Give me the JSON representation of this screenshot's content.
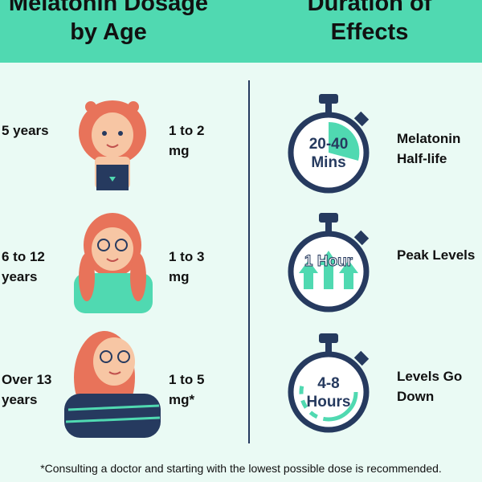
{
  "header": {
    "left_title": "Melatonin Dosage by Age",
    "right_title": "Duration of Effects"
  },
  "dosage": [
    {
      "age": "5 years",
      "dose": "1 to 2 mg"
    },
    {
      "age": "6 to 12 years",
      "dose": "1 to 3 mg"
    },
    {
      "age": "Over 13 years",
      "dose": "1 to 5 mg*"
    }
  ],
  "duration": [
    {
      "time": "20-40 Mins",
      "label": "Melatonin Half-life"
    },
    {
      "time": "1 Hour",
      "label": "Peak Levels"
    },
    {
      "time": "4-8 Hours",
      "label": "Levels Go Down"
    }
  ],
  "footnote": "*Consulting a doctor and starting with the lowest possible dose is recommended."
}
